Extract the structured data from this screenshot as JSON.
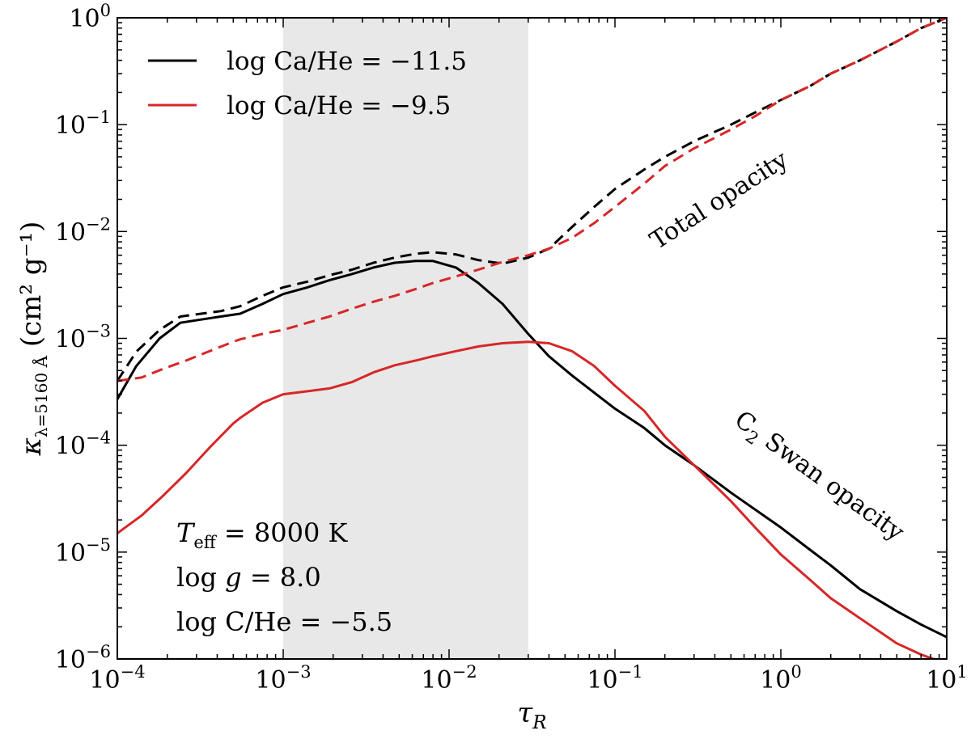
{
  "chart_data": {
    "type": "line",
    "xscale": "log",
    "yscale": "log",
    "xlim": [
      0.0001,
      10
    ],
    "ylim": [
      1e-06,
      1
    ],
    "xlabel": {
      "base": "τ",
      "sub": "R"
    },
    "ylabel": {
      "base": "κ",
      "sub": "λ=5160 Å",
      "units": "(cm² g⁻¹)"
    },
    "x_ticks": [
      {
        "value": 0.0001,
        "base": "10",
        "exp": "−4"
      },
      {
        "value": 0.001,
        "base": "10",
        "exp": "−3"
      },
      {
        "value": 0.01,
        "base": "10",
        "exp": "−2"
      },
      {
        "value": 0.1,
        "base": "10",
        "exp": "−1"
      },
      {
        "value": 1,
        "base": "10",
        "exp": "0"
      },
      {
        "value": 10,
        "base": "10",
        "exp": "1"
      }
    ],
    "y_ticks": [
      {
        "value": 1e-06,
        "base": "10",
        "exp": "−6"
      },
      {
        "value": 1e-05,
        "base": "10",
        "exp": "−5"
      },
      {
        "value": 0.0001,
        "base": "10",
        "exp": "−4"
      },
      {
        "value": 0.001,
        "base": "10",
        "exp": "−3"
      },
      {
        "value": 0.01,
        "base": "10",
        "exp": "−2"
      },
      {
        "value": 0.1,
        "base": "10",
        "exp": "−1"
      },
      {
        "value": 1,
        "base": "10",
        "exp": "0"
      }
    ],
    "shaded_region": {
      "x": [
        0.001,
        0.03
      ],
      "color": "#e8e8e8"
    },
    "grid": false,
    "legend": {
      "placement": "upper-left",
      "entries": [
        {
          "label": "log Ca/He = −11.5",
          "color": "#000000"
        },
        {
          "label": "log Ca/He = −9.5",
          "color": "#d62728"
        }
      ]
    },
    "series": [
      {
        "name": "log Ca/He = −11.5",
        "component": "C2 Swan opacity",
        "color": "#000000",
        "style": "solid",
        "x": [
          0.0001,
          0.00013,
          0.00018,
          0.00024,
          0.00032,
          0.00042,
          0.00055,
          0.00075,
          0.001,
          0.0014,
          0.0019,
          0.0026,
          0.0035,
          0.0047,
          0.0063,
          0.008,
          0.011,
          0.015,
          0.021,
          0.03,
          0.04,
          0.055,
          0.075,
          0.1,
          0.15,
          0.2,
          0.3,
          0.5,
          0.7,
          1,
          1.5,
          2,
          3,
          5,
          7,
          10
        ],
        "y": [
          0.00027,
          0.00055,
          0.001,
          0.0014,
          0.0015,
          0.0016,
          0.0017,
          0.0021,
          0.0026,
          0.003,
          0.0035,
          0.004,
          0.0046,
          0.0051,
          0.0053,
          0.0053,
          0.0046,
          0.0033,
          0.0021,
          0.0011,
          0.00068,
          0.00045,
          0.00031,
          0.00022,
          0.000145,
          0.0001,
          6.5e-05,
          3.6e-05,
          2.5e-05,
          1.7e-05,
          1.05e-05,
          7.5e-06,
          4.5e-06,
          2.8e-06,
          2.1e-06,
          1.6e-06
        ]
      },
      {
        "name": "log Ca/He = −9.5",
        "component": "C2 Swan opacity",
        "color": "#d62728",
        "style": "solid",
        "x": [
          0.0001,
          0.00014,
          0.00019,
          0.00026,
          0.00036,
          0.0005,
          0.00055,
          0.00075,
          0.001,
          0.0014,
          0.0019,
          0.0026,
          0.0035,
          0.0047,
          0.0063,
          0.008,
          0.011,
          0.015,
          0.021,
          0.03,
          0.04,
          0.055,
          0.075,
          0.1,
          0.15,
          0.2,
          0.3,
          0.5,
          0.7,
          1,
          1.5,
          2,
          3,
          5,
          7,
          10
        ],
        "y": [
          1.5e-05,
          2.2e-05,
          3.4e-05,
          5.5e-05,
          9.5e-05,
          0.00016,
          0.00018,
          0.00025,
          0.0003,
          0.00032,
          0.00034,
          0.00039,
          0.00048,
          0.00056,
          0.00062,
          0.00068,
          0.00076,
          0.00084,
          0.0009,
          0.00093,
          0.0009,
          0.00076,
          0.00055,
          0.00036,
          0.00021,
          0.00012,
          6.5e-05,
          3e-05,
          1.7e-05,
          9.5e-06,
          5.5e-06,
          3.7e-06,
          2.4e-06,
          1.4e-06,
          1.1e-06,
          9e-07
        ]
      },
      {
        "name": "log Ca/He = −11.5",
        "component": "Total opacity",
        "color": "#000000",
        "style": "dashed",
        "x": [
          0.0001,
          0.00013,
          0.00018,
          0.00024,
          0.00032,
          0.00042,
          0.00055,
          0.00075,
          0.001,
          0.0014,
          0.0019,
          0.0026,
          0.0035,
          0.0047,
          0.0063,
          0.008,
          0.011,
          0.015,
          0.021,
          0.03,
          0.04,
          0.055,
          0.075,
          0.1,
          0.15,
          0.2,
          0.3,
          0.5,
          0.7,
          1,
          1.5,
          2,
          3,
          5,
          7,
          10
        ],
        "y": [
          0.0004,
          0.00075,
          0.0012,
          0.0016,
          0.0017,
          0.0018,
          0.002,
          0.0025,
          0.003,
          0.0034,
          0.0039,
          0.0044,
          0.0051,
          0.0057,
          0.0062,
          0.0064,
          0.0061,
          0.0054,
          0.005,
          0.0057,
          0.0069,
          0.011,
          0.017,
          0.025,
          0.038,
          0.05,
          0.07,
          0.1,
          0.13,
          0.17,
          0.23,
          0.3,
          0.4,
          0.6,
          0.8,
          1.0
        ]
      },
      {
        "name": "log Ca/He = −9.5",
        "component": "Total opacity",
        "color": "#d62728",
        "style": "dashed",
        "x": [
          0.0001,
          0.00014,
          0.00019,
          0.00026,
          0.00036,
          0.0005,
          0.00055,
          0.00075,
          0.001,
          0.0014,
          0.0019,
          0.0026,
          0.0035,
          0.0047,
          0.0063,
          0.008,
          0.011,
          0.015,
          0.021,
          0.03,
          0.04,
          0.055,
          0.075,
          0.1,
          0.15,
          0.2,
          0.3,
          0.5,
          0.7,
          1,
          1.5,
          2,
          3,
          5,
          7,
          10
        ],
        "y": [
          0.0004,
          0.00043,
          0.00052,
          0.00062,
          0.00076,
          0.00093,
          0.00098,
          0.0011,
          0.0012,
          0.0014,
          0.0016,
          0.0019,
          0.0022,
          0.0025,
          0.0029,
          0.0033,
          0.0038,
          0.0044,
          0.0052,
          0.006,
          0.0069,
          0.0087,
          0.012,
          0.017,
          0.028,
          0.041,
          0.06,
          0.09,
          0.12,
          0.17,
          0.23,
          0.3,
          0.4,
          0.6,
          0.8,
          1.0
        ]
      }
    ],
    "annotations": [
      {
        "text": "Total opacity",
        "x": 0.45,
        "y": 0.017,
        "rotation_deg": -33
      },
      {
        "text_base": "C",
        "text_sub": "2",
        "text_rest": " Swan opacity",
        "x": 1.6,
        "y": 4.5e-05,
        "rotation_deg": 36
      }
    ],
    "parameters": [
      {
        "base": "T",
        "sub": "eff",
        "rest": " = 8000 K"
      },
      {
        "base": "log ",
        "italic": "g",
        "rest": " = 8.0"
      },
      {
        "base": "log C/He = −5.5"
      }
    ]
  }
}
